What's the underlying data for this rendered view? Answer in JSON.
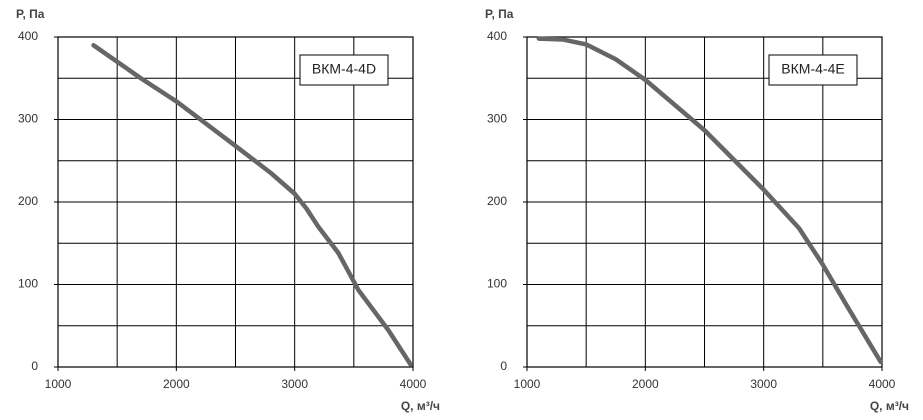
{
  "chart_data": [
    {
      "type": "line",
      "x_label": "Q, м³/ч",
      "y_label": "P, Па",
      "xlim": [
        1000,
        4000
      ],
      "ylim": [
        0,
        400
      ],
      "xticks": [
        1000,
        2000,
        3000,
        4000
      ],
      "yticks": [
        0,
        100,
        200,
        300,
        400
      ],
      "xgrid": [
        1000,
        1500,
        2000,
        2500,
        3000,
        3500,
        4000
      ],
      "ygrid": [
        0,
        50,
        100,
        150,
        200,
        250,
        300,
        350,
        400
      ],
      "series": [
        {
          "name": "ВКМ-4-4D",
          "color": "#666666",
          "x": [
            1300,
            1500,
            1700,
            2000,
            2500,
            2800,
            3000,
            3100,
            3200,
            3370,
            3540,
            3790,
            3980
          ],
          "values": [
            390,
            370,
            350,
            322,
            268,
            235,
            210,
            192,
            170,
            138,
            93,
            45,
            3
          ]
        }
      ]
    },
    {
      "type": "line",
      "x_label": "Q, м³/ч",
      "y_label": "P, Па",
      "xlim": [
        1000,
        4000
      ],
      "ylim": [
        0,
        400
      ],
      "xticks": [
        1000,
        2000,
        3000,
        4000
      ],
      "yticks": [
        0,
        100,
        200,
        300,
        400
      ],
      "xgrid": [
        1000,
        1500,
        2000,
        2500,
        3000,
        3500,
        4000
      ],
      "ygrid": [
        0,
        50,
        100,
        150,
        200,
        250,
        300,
        350,
        400
      ],
      "series": [
        {
          "name": "ВКМ-4-4E",
          "color": "#666666",
          "x": [
            1100,
            1300,
            1500,
            1750,
            2000,
            2500,
            3000,
            3300,
            3500,
            3700,
            3990
          ],
          "values": [
            398,
            397,
            391,
            373,
            348,
            287,
            215,
            168,
            124,
            75,
            6
          ]
        }
      ]
    }
  ]
}
